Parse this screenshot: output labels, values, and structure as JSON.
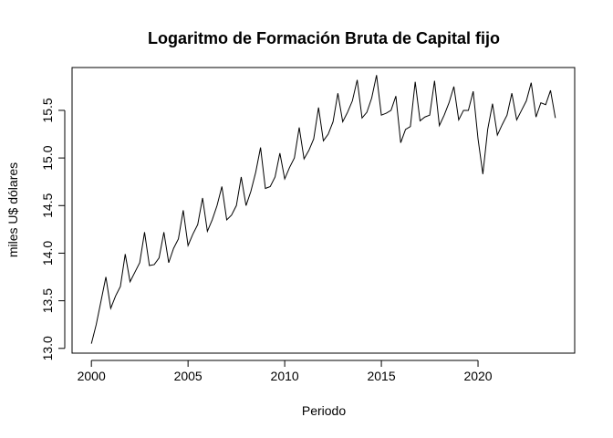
{
  "chart_data": {
    "type": "line",
    "title": "Logaritmo de Formación Bruta de Capital fijo",
    "xlabel": "Periodo",
    "ylabel": "miles U$ dólares",
    "xlim": [
      1999,
      2025
    ],
    "ylim": [
      12.95,
      15.95
    ],
    "x_ticks": [
      2000,
      2005,
      2010,
      2015,
      2020
    ],
    "y_ticks": [
      13.0,
      13.5,
      14.0,
      14.5,
      15.0,
      15.5
    ],
    "x_tick_labels": [
      "2000",
      "2005",
      "2010",
      "2015",
      "2020"
    ],
    "y_tick_labels": [
      "13.0",
      "13.5",
      "14.0",
      "14.5",
      "15.0",
      "15.5"
    ],
    "grid": false,
    "line_color": "#000000",
    "series": [
      {
        "x": [
          2000.0,
          2000.25,
          2000.5,
          2000.75,
          2001.0,
          2001.25,
          2001.5,
          2001.75,
          2002.0,
          2002.25,
          2002.5,
          2002.75,
          2003.0,
          2003.25,
          2003.5,
          2003.75,
          2004.0,
          2004.25,
          2004.5,
          2004.75,
          2005.0,
          2005.25,
          2005.5,
          2005.75,
          2006.0,
          2006.25,
          2006.5,
          2006.75,
          2007.0,
          2007.25,
          2007.5,
          2007.75,
          2008.0,
          2008.25,
          2008.5,
          2008.75,
          2009.0,
          2009.25,
          2009.5,
          2009.75,
          2010.0,
          2010.25,
          2010.5,
          2010.75,
          2011.0,
          2011.25,
          2011.5,
          2011.75,
          2012.0,
          2012.25,
          2012.5,
          2012.75,
          2013.0,
          2013.25,
          2013.5,
          2013.75,
          2014.0,
          2014.25,
          2014.5,
          2014.75,
          2015.0,
          2015.25,
          2015.5,
          2015.75,
          2016.0,
          2016.25,
          2016.5,
          2016.75,
          2017.0,
          2017.25,
          2017.5,
          2017.75,
          2018.0,
          2018.25,
          2018.5,
          2018.75,
          2019.0,
          2019.25,
          2019.5,
          2019.75,
          2020.0,
          2020.25,
          2020.5,
          2020.75,
          2021.0,
          2021.25,
          2021.5,
          2021.75,
          2022.0,
          2022.25,
          2022.5,
          2022.75,
          2023.0,
          2023.25,
          2023.5,
          2023.75,
          2024.0
        ],
        "values": [
          13.05,
          13.25,
          13.5,
          13.75,
          13.42,
          13.55,
          13.65,
          13.99,
          13.7,
          13.8,
          13.9,
          14.22,
          13.87,
          13.88,
          13.95,
          14.22,
          13.9,
          14.05,
          14.15,
          14.45,
          14.08,
          14.2,
          14.3,
          14.58,
          14.23,
          14.35,
          14.5,
          14.7,
          14.35,
          14.4,
          14.5,
          14.8,
          14.5,
          14.65,
          14.85,
          15.11,
          14.68,
          14.7,
          14.8,
          15.05,
          14.78,
          14.9,
          15.0,
          15.32,
          14.99,
          15.08,
          15.2,
          15.53,
          15.18,
          15.25,
          15.38,
          15.68,
          15.38,
          15.48,
          15.6,
          15.82,
          15.42,
          15.48,
          15.63,
          15.87,
          15.45,
          15.47,
          15.5,
          15.65,
          15.16,
          15.3,
          15.33,
          15.8,
          15.39,
          15.43,
          15.45,
          15.81,
          15.34,
          15.45,
          15.58,
          15.75,
          15.4,
          15.5,
          15.5,
          15.7,
          15.2,
          14.83,
          15.3,
          15.57,
          15.24,
          15.35,
          15.45,
          15.68,
          15.4,
          15.5,
          15.6,
          15.79,
          15.43,
          15.58,
          15.56,
          15.71,
          15.42
        ]
      }
    ]
  }
}
